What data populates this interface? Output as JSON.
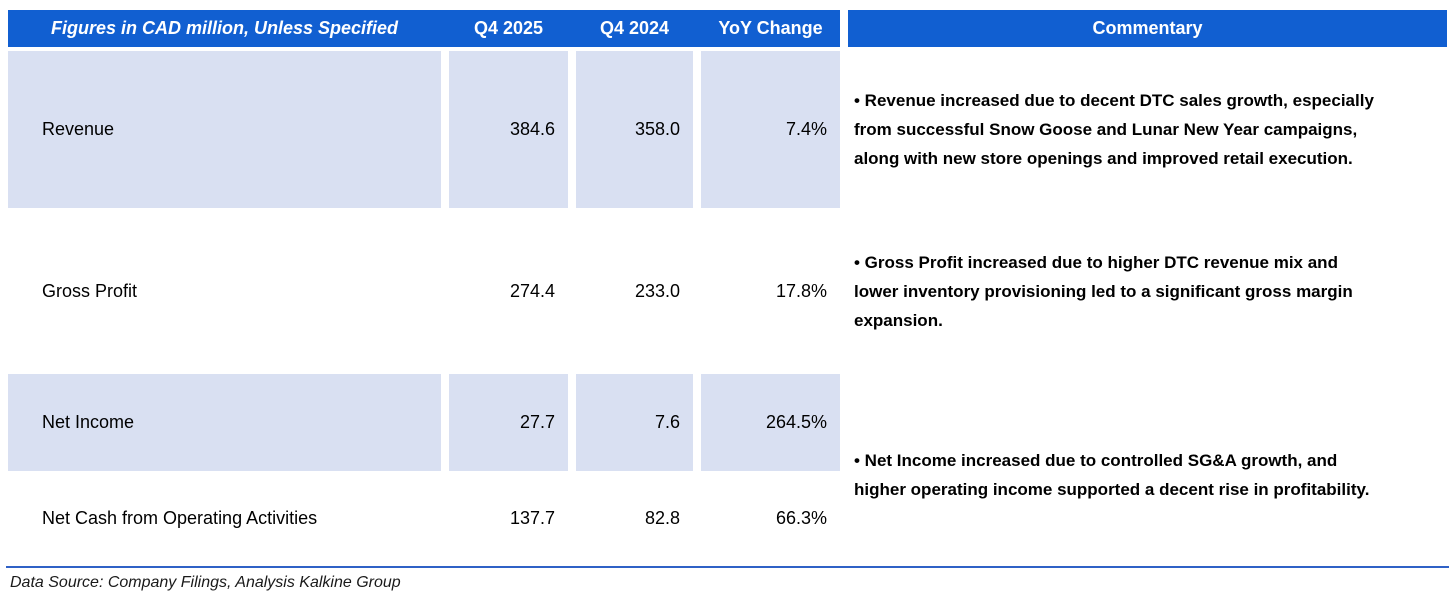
{
  "table": {
    "header": {
      "label": "Figures in CAD million, Unless Specified",
      "q4_2025": "Q4 2025",
      "q4_2024": "Q4 2024",
      "yoy": "YoY Change",
      "commentary": "Commentary"
    },
    "rows": [
      {
        "label": "Revenue",
        "q4_2025": "384.6",
        "q4_2024": "358.0",
        "yoy": "7.4%",
        "commentary_lines": [
          "• Revenue increased due to decent DTC sales growth, especially",
          "from successful Snow Goose and Lunar New Year campaigns,",
          "along with new store openings and improved retail execution."
        ]
      },
      {
        "label": "Gross Profit",
        "q4_2025": "274.4",
        "q4_2024": "233.0",
        "yoy": "17.8%",
        "commentary_lines": [
          "• Gross Profit increased due to higher DTC revenue mix and",
          "lower inventory provisioning led to a significant gross margin",
          "expansion."
        ]
      },
      {
        "label": "Net Income",
        "q4_2025": "27.7",
        "q4_2024": "7.6",
        "yoy": "264.5%",
        "commentary_lines": [
          "• Net Income increased due to controlled SG&A growth, and",
          "higher operating income supported a decent rise in profitability."
        ]
      },
      {
        "label": "Net Cash from Operating Activities",
        "q4_2025": "137.7",
        "q4_2024": "82.8",
        "yoy": "66.3%",
        "commentary_lines": []
      }
    ]
  },
  "footer": {
    "source_note": "Data Source: Company Filings, Analysis Kalkine Group"
  },
  "colors": {
    "header_bg": "#115FD1",
    "band_fill": "#D9E0F2",
    "divider_line": "#2F61C6",
    "header_text": "#FFFFFF",
    "body_text": "#000000"
  }
}
